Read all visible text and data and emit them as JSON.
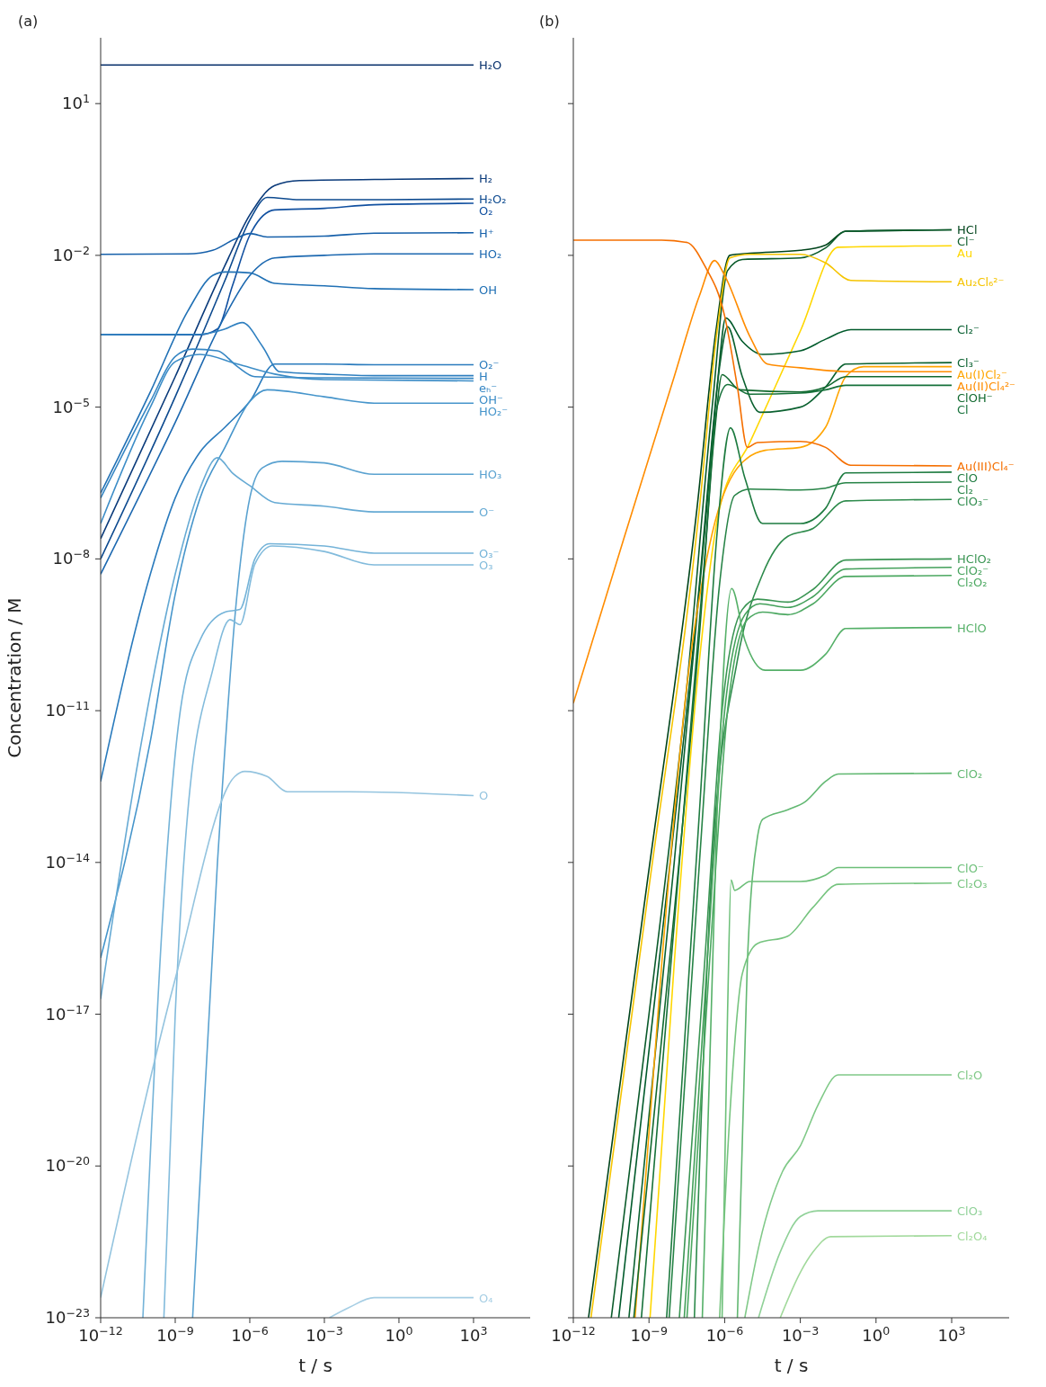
{
  "chart_data": [
    {
      "type": "line",
      "title": "(a)",
      "xlabel": "t / s",
      "ylabel": "Concentration / M",
      "log": "xy",
      "legend": false,
      "grid": false,
      "marker": "none",
      "line_style": "solid",
      "xlim": [
        1e-12,
        190000
      ],
      "ylim": [
        1e-23,
        200
      ],
      "xticks": [
        {
          "value": 1e-12,
          "label": "10$^{−12}$"
        },
        {
          "value": 1e-09,
          "label": "10$^{−9}$"
        },
        {
          "value": 1e-06,
          "label": "10$^{−6}$"
        },
        {
          "value": 0.001,
          "label": "10$^{−3}$"
        },
        {
          "value": 1,
          "label": "10$^{0}$"
        },
        {
          "value": 1000,
          "label": "10$^{3}$"
        }
      ],
      "yticks": [
        {
          "value": 1e-23,
          "label": "10$^{−23}$"
        },
        {
          "value": 1e-20,
          "label": "10$^{−20}$"
        },
        {
          "value": 1e-17,
          "label": "10$^{−17}$"
        },
        {
          "value": 1e-14,
          "label": "10$^{−14}$"
        },
        {
          "value": 1e-11,
          "label": "10$^{−11}$"
        },
        {
          "value": 1e-08,
          "label": "10$^{−8}$"
        },
        {
          "value": 1e-05,
          "label": "10$^{−5}$"
        },
        {
          "value": 0.01,
          "label": "10$^{−2}$"
        },
        {
          "value": 10,
          "label": "10$^{1}$"
        }
      ],
      "series": [
        {
          "name": "H₂O",
          "color": "#08306b",
          "x": [
            1e-12,
            1000
          ],
          "values": [
            58,
            58
          ]
        },
        {
          "name": "H₂",
          "color": "#0a3a7a",
          "x": [
            1e-12,
            1e-09,
            1e-07,
            1e-06,
            1e-05,
            0.0001,
            1,
            1000
          ],
          "values": [
            2.5e-08,
            4e-05,
            0.0063,
            0.063,
            0.24,
            0.3,
            0.32,
            0.33
          ]
        },
        {
          "name": "H₂O₂",
          "color": "#0d4a8f",
          "x": [
            1e-12,
            1e-09,
            1e-07,
            1e-06,
            5e-06,
            0.0001,
            0.1,
            1000
          ],
          "values": [
            1e-08,
            1.6e-05,
            0.0032,
            0.05,
            0.14,
            0.126,
            0.126,
            0.13
          ]
        },
        {
          "name": "O₂",
          "color": "#1150a0",
          "x": [
            1e-12,
            1e-08,
            5e-08,
            2e-07,
            1e-06,
            1e-05,
            0.001,
            0.1,
            1000
          ],
          "values": [
            0.00027,
            0.00027,
            0.00035,
            0.0025,
            0.025,
            0.079,
            0.085,
            0.1,
            0.107
          ]
        },
        {
          "name": "H⁺",
          "color": "#1660aa",
          "x": [
            1e-12,
            3.2e-09,
            3.2e-08,
            2.5e-07,
            1e-06,
            5e-06,
            0.001,
            0.1,
            1000
          ],
          "values": [
            0.0105,
            0.0107,
            0.0126,
            0.021,
            0.027,
            0.023,
            0.024,
            0.0275,
            0.028
          ]
        },
        {
          "name": "HO₂",
          "color": "#1c68b0",
          "x": [
            1e-12,
            1e-09,
            1e-07,
            1e-06,
            1e-05,
            0.001,
            0.1,
            1000
          ],
          "values": [
            5e-09,
            5e-06,
            0.00063,
            0.004,
            0.0089,
            0.01,
            0.0107,
            0.0107
          ]
        },
        {
          "name": "OH",
          "color": "#2171b5",
          "x": [
            1e-12,
            1e-10,
            3.2e-09,
            3.2e-08,
            1e-07,
            1e-06,
            1e-05,
            0.001,
            0.1,
            1000
          ],
          "values": [
            2e-07,
            2e-05,
            0.00079,
            0.004,
            0.0047,
            0.0045,
            0.0028,
            0.0025,
            0.0022,
            0.0021
          ]
        },
        {
          "name": "O₂⁻",
          "color": "#2a7bbd",
          "x": [
            1e-12,
            1e-10,
            1e-09,
            1e-08,
            1e-07,
            1e-06,
            1e-05,
            0.001,
            0.1,
            1000
          ],
          "values": [
            4e-13,
            5e-09,
            1.6e-07,
            1.3e-06,
            4e-06,
            1.3e-05,
            7.1e-05,
            7.1e-05,
            6.9e-05,
            6.9e-05
          ]
        },
        {
          "name": "H",
          "color": "#3080c0",
          "x": [
            1e-12,
            1e-08,
            1e-07,
            5e-07,
            3.2e-06,
            1.6e-05,
            0.001,
            0.1,
            1000
          ],
          "values": [
            0.00027,
            0.000275,
            0.00035,
            0.00047,
            0.00016,
            5e-05,
            4.5e-05,
            4.2e-05,
            4.2e-05
          ]
        },
        {
          "name": "eₕ⁻",
          "color": "#3787c4",
          "x": [
            1e-12,
            1e-10,
            1e-09,
            5e-09,
            5e-08,
            3.2e-07,
            1.6e-06,
            0.001,
            1000
          ],
          "values": [
            1.6e-07,
            1.3e-05,
            0.0001,
            0.00014,
            0.00013,
            6.3e-05,
            4e-05,
            3.8e-05,
            3.7e-05
          ]
        },
        {
          "name": "OH⁻",
          "color": "#3d8dc7",
          "x": [
            1e-12,
            1e-10,
            1e-09,
            1e-08,
            3.2e-07,
            1e-05,
            0.001,
            1000
          ],
          "values": [
            5e-08,
            1e-05,
            7.9e-05,
            0.00011,
            7.1e-05,
            4.5e-05,
            3.5e-05,
            3.3e-05
          ]
        },
        {
          "name": "HO₂⁻",
          "color": "#4695cb",
          "x": [
            1e-12,
            1e-10,
            1e-09,
            1e-08,
            1e-07,
            1e-06,
            5e-06,
            0.001,
            0.1,
            1000
          ],
          "values": [
            1.3e-16,
            2.5e-12,
            2e-09,
            1.6e-07,
            1.6e-06,
            1.3e-05,
            2.2e-05,
            1.6e-05,
            1.2e-05,
            1.2e-05
          ]
        },
        {
          "name": "HO₃",
          "color": "#5aa2d0",
          "x": [
            5e-09,
            5e-08,
            3.2e-07,
            1e-06,
            3.2e-06,
            2e-05,
            0.001,
            0.1,
            1000
          ],
          "values": [
            1e-23,
            1e-14,
            2.5e-09,
            1.6e-07,
            6.3e-07,
            8.5e-07,
            7.9e-07,
            4.7e-07,
            4.7e-07
          ]
        },
        {
          "name": "O⁻",
          "color": "#66aad4",
          "x": [
            1e-12,
            3.2e-11,
            1e-09,
            1e-08,
            5e-08,
            2e-07,
            1e-06,
            1e-05,
            0.001,
            0.1,
            1000
          ],
          "values": [
            2e-17,
            1e-12,
            5e-09,
            2.5e-07,
            1e-06,
            5e-07,
            2.8e-07,
            1.3e-07,
            1.1e-07,
            8.5e-08,
            8.5e-08
          ]
        },
        {
          "name": "O₃⁻",
          "color": "#74b3d8",
          "x": [
            5e-11,
            3.2e-10,
            1.6e-09,
            1e-08,
            1e-07,
            4e-07,
            1.6e-06,
            6.3e-06,
            0.001,
            0.1,
            1000
          ],
          "values": [
            1e-23,
            1e-15,
            1e-11,
            2.5e-10,
            8.9e-10,
            1e-09,
            1e-08,
            2e-08,
            1.8e-08,
            1.3e-08,
            1.3e-08
          ]
        },
        {
          "name": "O₃",
          "color": "#82bbdc",
          "x": [
            3.5e-10,
            1e-09,
            3.2e-09,
            3.2e-08,
            1.6e-07,
            4e-07,
            1.6e-06,
            7.9e-06,
            0.001,
            0.1,
            1000
          ],
          "values": [
            1e-23,
            1e-17,
            1e-13,
            6.3e-11,
            6.3e-10,
            5e-10,
            7.9e-09,
            1.8e-08,
            1.4e-08,
            7.6e-09,
            7.6e-09
          ]
        },
        {
          "name": "O",
          "color": "#94c4df",
          "x": [
            1e-12,
            1e-09,
            2.5e-07,
            6.3e-07,
            5e-06,
            3.2e-05,
            0.01,
            1000
          ],
          "values": [
            2.5e-23,
            5e-17,
            5e-13,
            6.3e-13,
            5e-13,
            2.5e-13,
            2.5e-13,
            2.1e-13
          ]
        },
        {
          "name": "O₄",
          "color": "#a6cee4",
          "x": [
            0.0016,
            0.01,
            0.1,
            1000
          ],
          "values": [
            1e-23,
            1.6e-23,
            2.5e-23,
            2.5e-23
          ]
        }
      ]
    },
    {
      "type": "line",
      "title": "(b)",
      "xlabel": "t / s",
      "log": "xy",
      "legend": false,
      "grid": false,
      "marker": "none",
      "line_style": "solid",
      "tick_labels": "x",
      "xlim": [
        1e-12,
        190000
      ],
      "ylim": [
        1e-23,
        200
      ],
      "xticks": [
        {
          "value": 1e-12,
          "label": "10$^{−12}$"
        },
        {
          "value": 1e-09,
          "label": "10$^{−9}$"
        },
        {
          "value": 1e-06,
          "label": "10$^{−6}$"
        },
        {
          "value": 0.001,
          "label": "10$^{−3}$"
        },
        {
          "value": 1,
          "label": "10$^{0}$"
        },
        {
          "value": 1000,
          "label": "10$^{3}$"
        }
      ],
      "yticks": [
        {
          "value": 1e-23,
          "label": null
        },
        {
          "value": 1e-20,
          "label": null
        },
        {
          "value": 1e-17,
          "label": null
        },
        {
          "value": 1e-14,
          "label": null
        },
        {
          "value": 1e-11,
          "label": null
        },
        {
          "value": 1e-08,
          "label": null
        },
        {
          "value": 1e-05,
          "label": null
        },
        {
          "value": 0.01,
          "label": null
        },
        {
          "value": 10,
          "label": null
        }
      ],
      "series": [
        {
          "name": "HCl",
          "color": "#00441b",
          "x": [
            4e-12,
            8e-10,
            8e-08,
            4.5e-07,
            1.6e-06,
            1e-05,
            0.001,
            0.01,
            0.063,
            1000
          ],
          "values": [
            1e-23,
            3.2e-15,
            1e-07,
            0.00032,
            0.01,
            0.011,
            0.0126,
            0.016,
            0.03,
            0.032
          ]
        },
        {
          "name": "Cl⁻",
          "color": "#0a5a2a",
          "x": [
            3.2e-11,
            1e-09,
            3.2e-08,
            3.2e-07,
            1.3e-06,
            5e-06,
            0.001,
            0.01,
            0.063,
            1000
          ],
          "values": [
            1e-23,
            1e-17,
            3.2e-11,
            1e-05,
            0.005,
            0.0083,
            0.0089,
            0.014,
            0.03,
            0.032
          ]
        },
        {
          "name": "Au",
          "color": "#ffd700",
          "x": [
            1.1e-09,
            1e-08,
            1e-07,
            6.3e-07,
            1e-05,
            0.0001,
            0.001,
            0.032,
            1000
          ],
          "values": [
            1e-23,
            1e-16,
            1e-10,
            1e-07,
            2e-06,
            2.5e-05,
            0.00032,
            0.0145,
            0.0155
          ]
        },
        {
          "name": "Au₂Cl₆²⁻",
          "color": "#f5c400",
          "x": [
            5e-12,
            1e-09,
            1e-07,
            5e-07,
            1.6e-06,
            1e-05,
            0.001,
            0.01,
            0.1,
            1000
          ],
          "values": [
            1e-23,
            3.2e-15,
            1e-07,
            0.00032,
            0.0089,
            0.0105,
            0.0105,
            0.0071,
            0.0032,
            0.003
          ]
        },
        {
          "name": "Cl₂⁻",
          "color": "#005a2b",
          "x": [
            6.3e-11,
            3.2e-09,
            1e-07,
            5e-07,
            1.1e-06,
            5e-06,
            3.2e-05,
            0.001,
            0.01,
            0.1,
            1000
          ],
          "values": [
            1e-23,
            3.2e-16,
            3.2e-09,
            2.5e-05,
            0.00058,
            0.0002,
            0.00011,
            0.00013,
            0.00022,
            0.00034,
            0.00034
          ]
        },
        {
          "name": "Cl₃⁻",
          "color": "#0b6130",
          "x": [
            1.6e-10,
            1e-08,
            1.6e-07,
            6.3e-07,
            1.3e-06,
            5e-06,
            2.5e-05,
            0.001,
            0.01,
            0.063,
            1000
          ],
          "values": [
            1e-23,
            1e-14,
            3.2e-08,
            6.3e-05,
            0.00039,
            4e-05,
            7.9e-06,
            1e-05,
            2.5e-05,
            7.1e-05,
            7.6e-05
          ]
        },
        {
          "name": "Au(I)Cl₂⁻",
          "color": "#ffa500",
          "x": [
            2.8e-10,
            3.2e-09,
            3.2e-08,
            3.2e-07,
            3.2e-06,
            4e-05,
            0.001,
            0.01,
            0.063,
            0.32,
            1000
          ],
          "values": [
            1e-23,
            1e-16,
            3.2e-11,
            3.2e-08,
            6.3e-07,
            1.4e-06,
            1.6e-06,
            4e-06,
            4e-05,
            6.3e-05,
            6.3e-05
          ]
        },
        {
          "name": "ClOH⁻",
          "color": "#11692f",
          "x": [
            2.5e-10,
            1e-08,
            1e-07,
            4e-07,
            7.9e-07,
            4e-06,
            0.001,
            0.01,
            0.063,
            1000
          ],
          "values": [
            1e-23,
            1e-15,
            3.2e-10,
            3.2e-06,
            4.4e-05,
            2.2e-05,
            2e-05,
            2.5e-05,
            4e-05,
            4e-05
          ]
        },
        {
          "name": "Cl",
          "color": "#16713a",
          "x": [
            5e-10,
            1.6e-08,
            1.6e-07,
            5e-07,
            1.3e-06,
            1e-05,
            0.001,
            0.01,
            0.063,
            1000
          ],
          "values": [
            1e-23,
            1e-14,
            1e-08,
            1e-05,
            2.8e-05,
            1.8e-05,
            1.9e-05,
            2.2e-05,
            2.7e-05,
            2.7e-05
          ]
        },
        {
          "name": "Au(II)Cl₄²⁻",
          "color": "#ff8c00",
          "x": [
            1e-12,
            1e-10,
            1e-08,
            1e-07,
            4e-07,
            1e-06,
            1e-05,
            5e-05,
            0.001,
            0.1,
            1000
          ],
          "values": [
            1.4e-11,
            2.5e-08,
            4e-05,
            0.0016,
            0.0079,
            0.004,
            0.00025,
            7.1e-05,
            6e-05,
            5e-05,
            5e-05
          ]
        },
        {
          "name": "Au(III)Cl₄⁻",
          "color": "#f56f00",
          "x": [
            1e-12,
            3.2e-09,
            3.2e-08,
            1.6e-07,
            1e-06,
            3.2e-06,
            7.9e-06,
            2e-05,
            0.001,
            0.01,
            0.1,
            1000
          ],
          "values": [
            0.02,
            0.02,
            0.018,
            0.0063,
            0.00063,
            2.5e-05,
            1.6e-06,
            2e-06,
            2.1e-06,
            1.6e-06,
            7.1e-07,
            6.9e-07
          ]
        },
        {
          "name": "ClO",
          "color": "#1e7b40",
          "x": [
            5e-09,
            1e-07,
            5e-07,
            1.7e-06,
            6.3e-06,
            3.2e-05,
            0.001,
            0.01,
            0.063,
            1000
          ],
          "values": [
            1e-23,
            1e-13,
            3.2e-08,
            3.9e-06,
            4e-07,
            5e-08,
            5e-08,
            1e-07,
            5e-07,
            5.2e-07
          ]
        },
        {
          "name": "Cl₂",
          "color": "#268346",
          "x": [
            6.3e-09,
            1e-07,
            6.3e-07,
            2.5e-06,
            1e-05,
            0.001,
            0.01,
            0.063,
            1000
          ],
          "values": [
            1e-23,
            1e-14,
            3.2e-09,
            1.8e-07,
            2.4e-07,
            2.3e-07,
            2.5e-07,
            3.2e-07,
            3.3e-07
          ]
        },
        {
          "name": "ClO₃⁻",
          "color": "#2e8b4c",
          "x": [
            6.3e-08,
            3.2e-07,
            3.2e-06,
            3.2e-05,
            0.00032,
            0.0032,
            0.063,
            1000
          ],
          "values": [
            1e-23,
            1e-14,
            1e-10,
            5e-09,
            2.8e-08,
            4e-08,
            1.4e-07,
            1.5e-07
          ]
        },
        {
          "name": "HClO₂",
          "color": "#3a9553",
          "x": [
            1.6e-08,
            1.6e-07,
            7.9e-07,
            5e-06,
            2e-05,
            0.00032,
            0.0032,
            0.063,
            1000
          ],
          "values": [
            1e-23,
            1e-16,
            1e-11,
            1e-09,
            1.6e-09,
            1.4e-09,
            2.5e-09,
            9.5e-09,
            1e-08
          ]
        },
        {
          "name": "ClO₂⁻",
          "color": "#43a05a",
          "x": [
            2.5e-08,
            2e-07,
            1e-06,
            6.3e-06,
            2.5e-05,
            0.00032,
            0.0032,
            0.063,
            1000
          ],
          "values": [
            1e-23,
            1e-16,
            1e-11,
            7.9e-10,
            1.3e-09,
            1.1e-09,
            1.8e-09,
            6.3e-09,
            6.8e-09
          ]
        },
        {
          "name": "Cl₂O₂",
          "color": "#4ca861",
          "x": [
            3.2e-08,
            2.5e-07,
            1.3e-06,
            7.9e-06,
            3.2e-05,
            0.00032,
            0.0032,
            0.063,
            1000
          ],
          "values": [
            1e-23,
            1e-16,
            1e-11,
            6.3e-10,
            8.9e-10,
            7.9e-10,
            1.3e-09,
            4.5e-09,
            4.7e-09
          ]
        },
        {
          "name": "HClO",
          "color": "#55b068",
          "x": [
            1.3e-07,
            5e-07,
            1.9e-06,
            6.3e-06,
            4e-05,
            0.001,
            0.01,
            0.063,
            1000
          ],
          "values": [
            1e-23,
            1e-13,
            2.6e-09,
            2.5e-10,
            6.3e-11,
            6.3e-11,
            1.3e-10,
            4.2e-10,
            4.4e-10
          ]
        },
        {
          "name": "ClO₂",
          "color": "#62b872",
          "x": [
            3.2e-06,
            7.9e-06,
            2e-05,
            3.2e-05,
            0.00032,
            0.0016,
            0.01,
            0.032,
            1000
          ],
          "values": [
            1e-23,
            1e-16,
            3.2e-14,
            7.1e-14,
            1.1e-13,
            1.6e-13,
            4e-13,
            5.6e-13,
            5.8e-13
          ]
        },
        {
          "name": "ClO⁻",
          "color": "#6cbf78",
          "x": [
            7.9e-07,
            1.3e-06,
            1.8e-06,
            2.5e-06,
            1e-05,
            0.001,
            0.01,
            0.032,
            1000
          ],
          "values": [
            1e-23,
            1e-17,
            4.5e-15,
            2.8e-15,
            4.2e-15,
            4.2e-15,
            5.6e-15,
            7.9e-15,
            7.9e-15
          ]
        },
        {
          "name": "Cl₂O₃",
          "color": "#76c47f",
          "x": [
            6.3e-07,
            1.6e-06,
            5e-06,
            2e-05,
            0.00032,
            0.0032,
            0.032,
            1000
          ],
          "values": [
            1e-23,
            1e-19,
            6.3e-17,
            2.5e-16,
            3.5e-16,
            1.3e-15,
            3.7e-15,
            3.9e-15
          ]
        },
        {
          "name": "Cl₂O",
          "color": "#80c988",
          "x": [
            6.3e-06,
            2.5e-05,
            0.0002,
            0.001,
            0.005,
            0.032,
            1000
          ],
          "values": [
            1e-23,
            3.2e-22,
            7.9e-21,
            2.5e-20,
            1.6e-19,
            6.3e-19,
            6.3e-19
          ]
        },
        {
          "name": "ClO₃",
          "color": "#90d198",
          "x": [
            2.2e-05,
            0.00016,
            0.001,
            0.005,
            1000
          ],
          "values": [
            1e-23,
            2e-22,
            1e-21,
            1.3e-21,
            1.3e-21
          ]
        },
        {
          "name": "Cl₂O₄",
          "color": "#a1d99b",
          "x": [
            0.00016,
            0.001,
            0.0032,
            0.016,
            1000
          ],
          "values": [
            1e-23,
            7.9e-23,
            2e-22,
            4e-22,
            4.2e-22
          ]
        }
      ]
    }
  ]
}
